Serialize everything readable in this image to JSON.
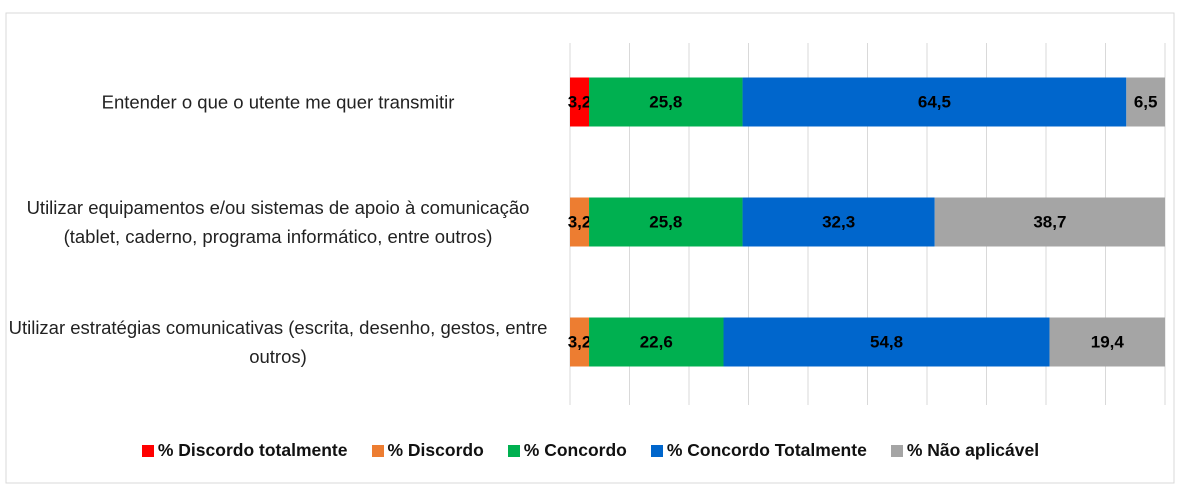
{
  "chart_data": {
    "type": "stacked-bar-horizontal",
    "categories": [
      "Entender o que o utente me quer transmitir",
      "Utilizar equipamentos e/ou sistemas de apoio à comunicação (tablet, caderno, programa informático, entre outros)",
      "Utilizar estratégias comunicativas (escrita, desenho, gestos, entre outros)"
    ],
    "series": [
      {
        "name": "% Discordo totalmente",
        "color": "#ff0000",
        "values": [
          3.2,
          null,
          null
        ],
        "value_labels": [
          "3,2",
          null,
          null
        ]
      },
      {
        "name": "% Discordo",
        "color": "#ed7d31",
        "values": [
          null,
          3.2,
          3.2
        ],
        "value_labels": [
          null,
          "3,2",
          "3,2"
        ]
      },
      {
        "name": "% Concordo",
        "color": "#00b050",
        "values": [
          25.8,
          25.8,
          22.6
        ],
        "value_labels": [
          "25,8",
          "25,8",
          "22,6"
        ]
      },
      {
        "name": "% Concordo Totalmente",
        "color": "#0066cc",
        "values": [
          64.5,
          32.3,
          54.8
        ],
        "value_labels": [
          "64,5",
          "32,3",
          "54,8"
        ]
      },
      {
        "name": "% Não aplicável",
        "color": "#a5a5a5",
        "values": [
          6.5,
          38.7,
          19.4
        ],
        "value_labels": [
          "6,5",
          "38,7",
          "19,4"
        ]
      }
    ],
    "xlim": [
      0,
      100
    ],
    "xticks": [
      0,
      10,
      20,
      30,
      40,
      50,
      60,
      70,
      80,
      90,
      100
    ],
    "grid": true,
    "legend": "bottom"
  }
}
